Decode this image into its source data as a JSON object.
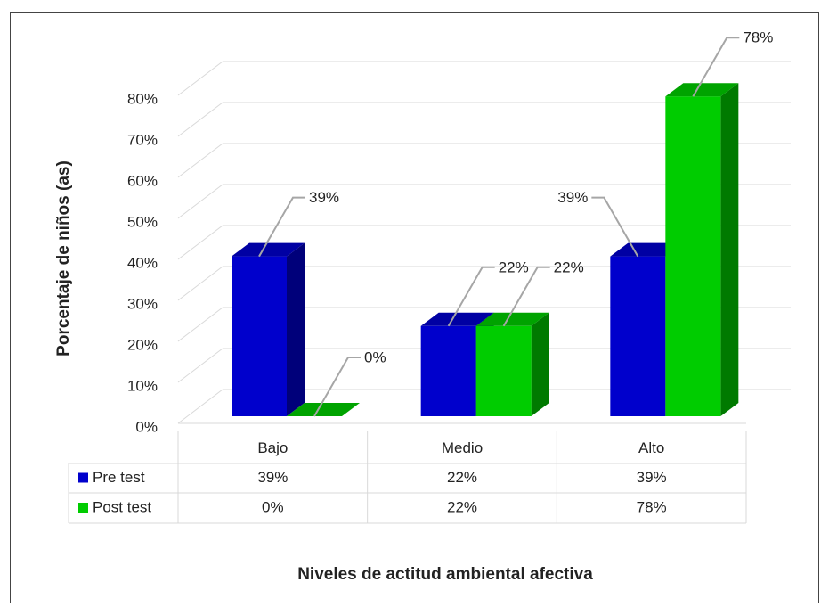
{
  "chart_data": {
    "type": "bar3d",
    "y_axis_label": "Porcentaje de niños (as)",
    "x_axis_label": "Niveles de actitud ambiental afectiva",
    "categories": [
      "Bajo",
      "Medio",
      "Alto"
    ],
    "series": [
      {
        "name": "Pre test",
        "color": "#0000cc",
        "values": [
          39,
          22,
          39
        ],
        "value_labels": [
          "39%",
          "22%",
          "39%"
        ]
      },
      {
        "name": "Post test",
        "color": "#00cc00",
        "values": [
          0,
          22,
          78
        ],
        "value_labels": [
          "0%",
          "22%",
          "78%"
        ]
      }
    ],
    "ylim": [
      0,
      80
    ],
    "yticks": [
      {
        "value": 0,
        "label": "0%"
      },
      {
        "value": 10,
        "label": "10%"
      },
      {
        "value": 20,
        "label": "20%"
      },
      {
        "value": 30,
        "label": "30%"
      },
      {
        "value": 40,
        "label": "40%"
      },
      {
        "value": 50,
        "label": "50%"
      },
      {
        "value": 60,
        "label": "60%"
      },
      {
        "value": 70,
        "label": "70%"
      },
      {
        "value": 80,
        "label": "80%"
      }
    ],
    "grid": true,
    "data_table": true
  }
}
